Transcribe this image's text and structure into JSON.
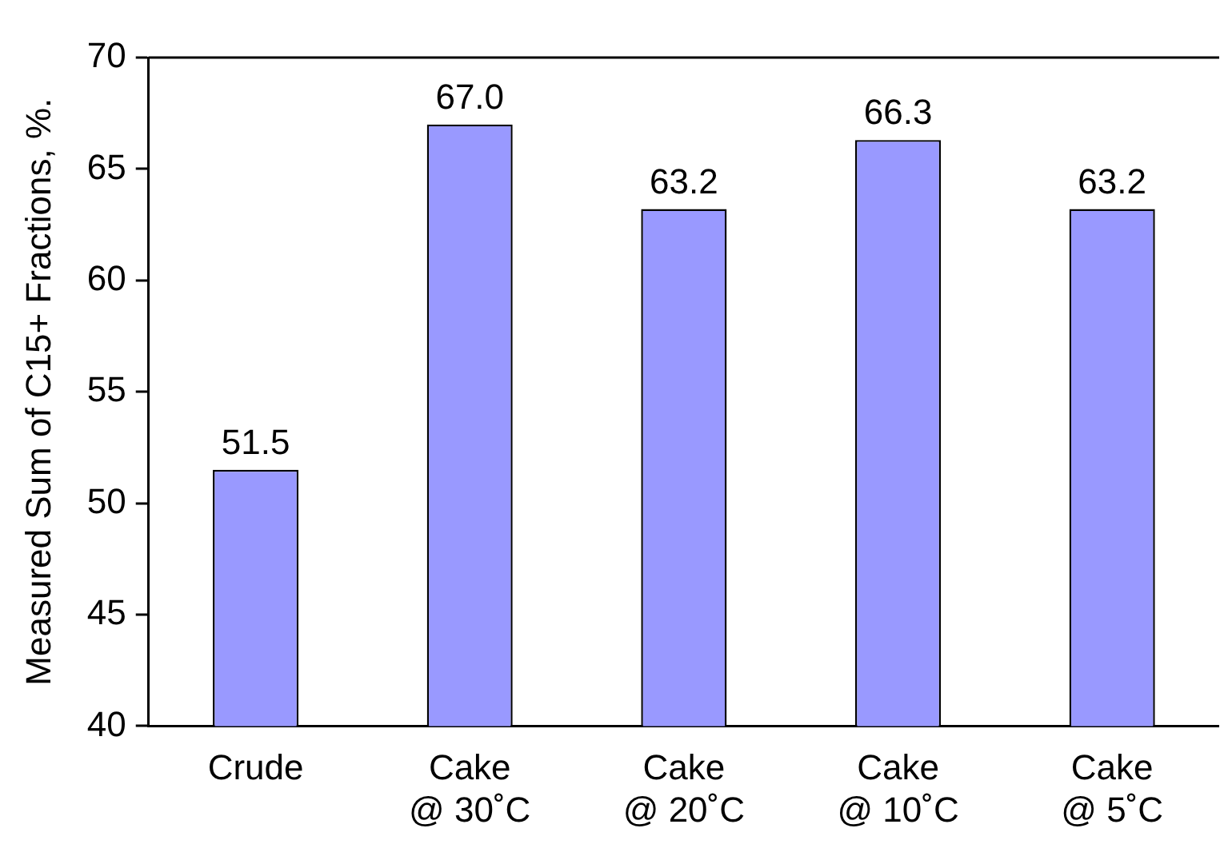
{
  "chart_data": {
    "type": "bar",
    "ylabel": "Measured Sum of C15+ Fractions, %.",
    "categories": [
      "Crude",
      "Cake\n@ 30˚C",
      "Cake\n@ 20˚C",
      "Cake\n@ 10˚C",
      "Cake\n@ 5˚C"
    ],
    "values": [
      51.5,
      67.0,
      63.2,
      66.3,
      63.2
    ],
    "value_labels": [
      "51.5",
      "67.0",
      "63.2",
      "66.3",
      "63.2"
    ],
    "color": "#9999ff",
    "ylim": [
      40,
      70
    ],
    "yticks": [
      40,
      45,
      50,
      55,
      60,
      65,
      70
    ],
    "grid": false,
    "legend": false
  }
}
